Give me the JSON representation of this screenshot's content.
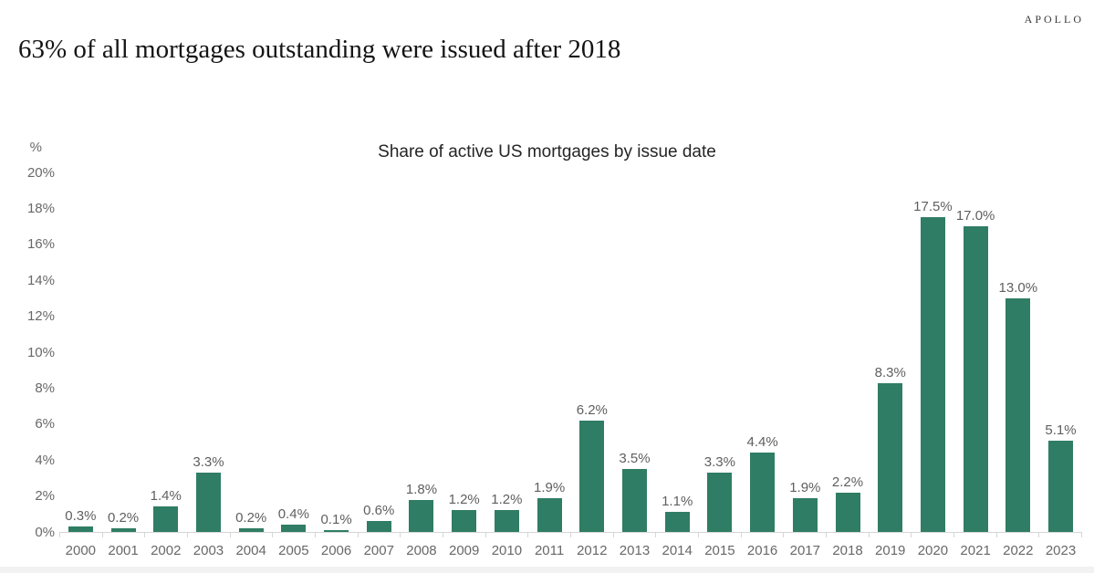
{
  "page": {
    "brand": "APOLLO",
    "headline": "63% of all mortgages outstanding were issued after 2018"
  },
  "chart_data": {
    "type": "bar",
    "title": "Share of active US mortgages by issue date",
    "unit_label": "%",
    "categories": [
      "2000",
      "2001",
      "2002",
      "2003",
      "2004",
      "2005",
      "2006",
      "2007",
      "2008",
      "2009",
      "2010",
      "2011",
      "2012",
      "2013",
      "2014",
      "2015",
      "2016",
      "2017",
      "2018",
      "2019",
      "2020",
      "2021",
      "2022",
      "2023"
    ],
    "values": [
      0.3,
      0.2,
      1.4,
      3.3,
      0.2,
      0.4,
      0.1,
      0.6,
      1.8,
      1.2,
      1.2,
      1.9,
      6.2,
      3.5,
      1.1,
      3.3,
      4.4,
      1.9,
      2.2,
      8.3,
      17.5,
      17.0,
      13.0,
      5.1
    ],
    "bar_labels": [
      "0.3%",
      "0.2%",
      "1.4%",
      "3.3%",
      "0.2%",
      "0.4%",
      "0.1%",
      "0.6%",
      "1.8%",
      "1.2%",
      "1.2%",
      "1.9%",
      "6.2%",
      "3.5%",
      "1.1%",
      "3.3%",
      "4.4%",
      "1.9%",
      "2.2%",
      "8.3%",
      "17.5%",
      "17.0%",
      "13.0%",
      "5.1%"
    ],
    "ylim": [
      0,
      20
    ],
    "ytick_values": [
      0,
      2,
      4,
      6,
      8,
      10,
      12,
      14,
      16,
      18,
      20
    ],
    "ytick_labels": [
      "0%",
      "2%",
      "4%",
      "6%",
      "8%",
      "10%",
      "12%",
      "14%",
      "16%",
      "18%",
      "20%"
    ],
    "grid": false,
    "legend": false,
    "colors": {
      "bar": "#2F7D64",
      "axis_label": "#686868",
      "data_label": "#5f5f5f",
      "title": "#252525",
      "baseline": "#d6d6d6"
    }
  }
}
